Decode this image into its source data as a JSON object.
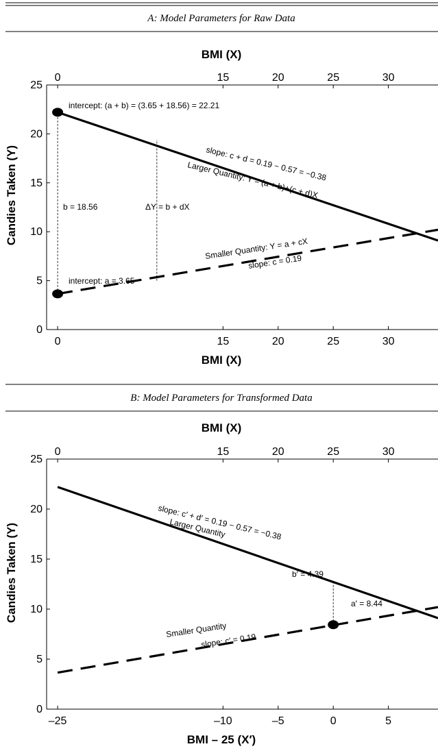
{
  "chart_data": [
    {
      "type": "line",
      "title": "A: Model Parameters for Raw Data",
      "xlabel": "BMI (X)",
      "xlabel_top": "BMI (X)",
      "ylabel": "Candies Taken (Y)",
      "xlim": [
        -1,
        34.5
      ],
      "ylim": [
        0,
        25
      ],
      "x_ticks": [
        0,
        15,
        20,
        25,
        30
      ],
      "x_ticks_top": [
        0,
        15,
        20,
        25,
        30
      ],
      "y_ticks": [
        0,
        5,
        10,
        15,
        20,
        25
      ],
      "series": [
        {
          "name": "Larger Quantity",
          "style": "solid",
          "x": [
            0,
            34.5
          ],
          "y": [
            22.21,
            9.1
          ]
        },
        {
          "name": "Smaller Quantity",
          "style": "dashed",
          "x": [
            0,
            34.5
          ],
          "y": [
            3.65,
            10.2
          ]
        }
      ],
      "points": [
        {
          "x": 0,
          "y": 22.21
        },
        {
          "x": 0,
          "y": 3.65
        }
      ],
      "guides": [
        {
          "x": 0,
          "y0": 3.65,
          "y1": 22.21
        },
        {
          "x": 9,
          "y0": 5.0,
          "y1": 19.4
        }
      ],
      "annotations": {
        "intercept_top": "intercept: (a + b) = (3.65 + 18.56) = 22.21",
        "slope_top": "slope: c + d = 0.19 − 0.57 = −0.38",
        "larger_eq": "Larger Quantity: Y = (a + b)+(c + d)X",
        "b_label": "b = 18.56",
        "delta_label": "ΔY = b + dX",
        "smaller_eq": "Smaller Quantity: Y = a + cX",
        "slope_bottom": "slope: c = 0.19",
        "intercept_bottom": "intercept: a = 3.65"
      }
    },
    {
      "type": "line",
      "title": "B: Model Parameters for Transformed Data",
      "xlabel": "BMI – 25 (X′)",
      "xlabel_top": "BMI (X)",
      "ylabel": "Candies Taken (Y)",
      "xlim": [
        -26,
        9.5
      ],
      "ylim": [
        0,
        25
      ],
      "x_ticks": [
        -25,
        -10,
        -5,
        0,
        5
      ],
      "x_tick_labels": [
        "–25",
        "–10",
        "–5",
        "0",
        "5"
      ],
      "x_ticks_top": [
        0,
        15,
        20,
        25,
        30
      ],
      "y_ticks": [
        0,
        5,
        10,
        15,
        20,
        25
      ],
      "series": [
        {
          "name": "Larger Quantity",
          "style": "solid",
          "x": [
            -25,
            9.5
          ],
          "y": [
            22.21,
            9.1
          ]
        },
        {
          "name": "Smaller Quantity",
          "style": "dashed",
          "x": [
            -25,
            9.5
          ],
          "y": [
            3.65,
            10.2
          ]
        }
      ],
      "points": [
        {
          "x": 0,
          "y": 8.44
        }
      ],
      "guides": [
        {
          "x": 0,
          "y0": 8.44,
          "y1": 12.83
        }
      ],
      "annotations": {
        "slope_top": "slope: c′ + d′ = 0.19 − 0.57 = −0.38",
        "larger_label": "Larger Quantity",
        "b_prime": "b′ = 4.39",
        "a_prime": "a′ = 8.44",
        "smaller_label": "Smaller Quantity",
        "slope_bottom": "slope: c′ = 0.19"
      }
    }
  ]
}
